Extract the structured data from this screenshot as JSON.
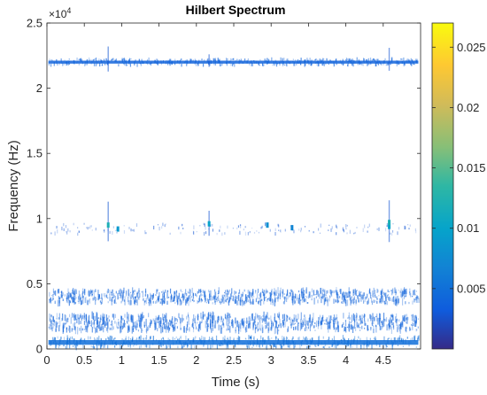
{
  "chart_data": {
    "type": "heatmap",
    "title": "Hilbert Spectrum",
    "xlabel": "Time (s)",
    "ylabel": "Frequency (Hz)",
    "y_exponent_base": "10",
    "y_exponent_power": "4",
    "xlim": [
      0,
      5
    ],
    "ylim": [
      0,
      25000
    ],
    "x_ticks": [
      {
        "value": 0,
        "label": "0"
      },
      {
        "value": 0.5,
        "label": "0.5"
      },
      {
        "value": 1,
        "label": "1"
      },
      {
        "value": 1.5,
        "label": "1.5"
      },
      {
        "value": 2,
        "label": "2"
      },
      {
        "value": 2.5,
        "label": "2.5"
      },
      {
        "value": 3,
        "label": "3"
      },
      {
        "value": 3.5,
        "label": "3.5"
      },
      {
        "value": 4,
        "label": "4"
      },
      {
        "value": 4.5,
        "label": "4.5"
      }
    ],
    "y_ticks": [
      {
        "value": 0,
        "label": "0"
      },
      {
        "value": 5000,
        "label": "0.5"
      },
      {
        "value": 10000,
        "label": "1"
      },
      {
        "value": 15000,
        "label": "1.5"
      },
      {
        "value": 20000,
        "label": "2"
      },
      {
        "value": 25000,
        "label": "2.5"
      }
    ],
    "colorbar": {
      "colormap": "parula",
      "range": [
        0,
        0.027
      ],
      "ticks": [
        {
          "value": 0.005,
          "label": "0.005"
        },
        {
          "value": 0.01,
          "label": "0.01"
        },
        {
          "value": 0.015,
          "label": "0.015"
        },
        {
          "value": 0.02,
          "label": "0.02"
        },
        {
          "value": 0.025,
          "label": "0.025"
        }
      ]
    },
    "bands": [
      {
        "frequency": 22000,
        "spread": 250,
        "density": "solid",
        "level": 0.002
      },
      {
        "frequency": 9200,
        "spread": 400,
        "density": "sparse",
        "level": 0.001
      },
      {
        "frequency": 4000,
        "spread": 500,
        "density": "dense",
        "level": 0.002
      },
      {
        "frequency": 2000,
        "spread": 600,
        "density": "dense",
        "level": 0.002
      },
      {
        "frequency": 500,
        "spread": 400,
        "density": "solid",
        "level": 0.003
      }
    ],
    "hotspots": [
      {
        "t": 0.82,
        "f": 9500,
        "level": 0.012
      },
      {
        "t": 0.95,
        "f": 9200,
        "level": 0.009
      },
      {
        "t": 2.17,
        "f": 9600,
        "level": 0.01
      },
      {
        "t": 2.95,
        "f": 9500,
        "level": 0.008
      },
      {
        "t": 3.28,
        "f": 9300,
        "level": 0.007
      },
      {
        "t": 4.58,
        "f": 9400,
        "level": 0.01
      },
      {
        "t": 4.58,
        "f": 9700,
        "level": 0.012
      }
    ],
    "spikes": [
      {
        "t": 0.82,
        "f": 22000,
        "extent": 1200
      },
      {
        "t": 2.17,
        "f": 22000,
        "extent": 600
      },
      {
        "t": 4.58,
        "f": 22000,
        "extent": 1100
      },
      {
        "t": 0.82,
        "f": 9400,
        "extent": 1900
      },
      {
        "t": 2.17,
        "f": 9400,
        "extent": 1200
      },
      {
        "t": 4.58,
        "f": 9400,
        "extent": 2000
      }
    ]
  }
}
